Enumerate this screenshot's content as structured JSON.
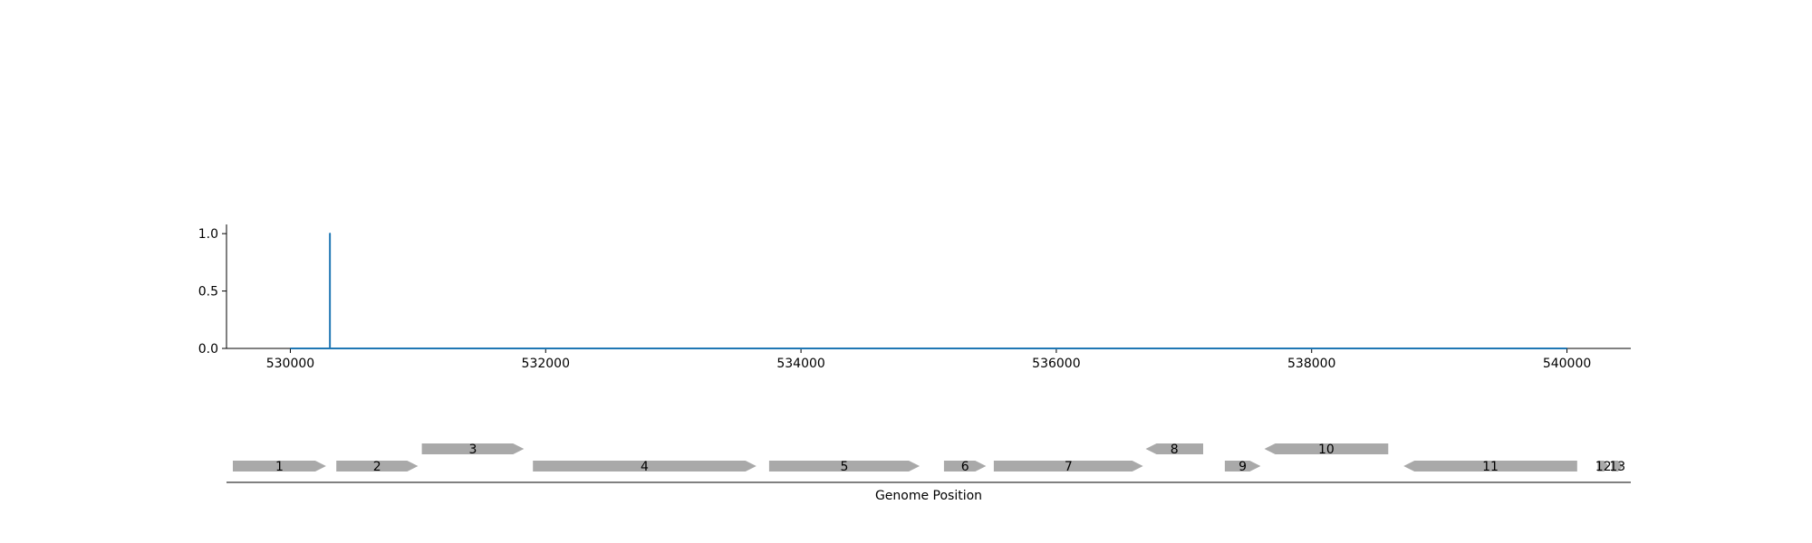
{
  "chart_data": {
    "type": "line",
    "title": "",
    "xlabel": "Genome Position",
    "ylabel": "",
    "xlim": [
      529500,
      540500
    ],
    "ylim": [
      0,
      1.08
    ],
    "x_ticks": [
      530000,
      532000,
      534000,
      536000,
      538000,
      540000
    ],
    "y_ticks": [
      0.0,
      0.5,
      1.0
    ],
    "y_tick_labels": [
      "0.0",
      "0.5",
      "1.0"
    ],
    "grid": false,
    "series": [
      {
        "color": "#1f77b4",
        "x": [
          530000,
          530310,
          530310,
          530310,
          530310,
          540000
        ],
        "y": [
          0,
          0,
          1.0,
          1.0,
          0,
          0
        ]
      }
    ],
    "genes": {
      "color": "#a9a9a9",
      "items": [
        {
          "label": "1",
          "start": 529550,
          "end": 530280,
          "strand": 1,
          "row": 0
        },
        {
          "label": "2",
          "start": 530360,
          "end": 531000,
          "strand": 1,
          "row": 0
        },
        {
          "label": "3",
          "start": 531030,
          "end": 531830,
          "strand": 1,
          "row": 1
        },
        {
          "label": "4",
          "start": 531900,
          "end": 533650,
          "strand": 1,
          "row": 0
        },
        {
          "label": "5",
          "start": 533750,
          "end": 534930,
          "strand": 1,
          "row": 0
        },
        {
          "label": "6",
          "start": 535120,
          "end": 535450,
          "strand": 1,
          "row": 0
        },
        {
          "label": "7",
          "start": 535510,
          "end": 536680,
          "strand": 1,
          "row": 0
        },
        {
          "label": "8",
          "start": 536700,
          "end": 537150,
          "strand": -1,
          "row": 1
        },
        {
          "label": "9",
          "start": 537320,
          "end": 537600,
          "strand": 1,
          "row": 0
        },
        {
          "label": "10",
          "start": 537630,
          "end": 538600,
          "strand": -1,
          "row": 1
        },
        {
          "label": "11",
          "start": 538720,
          "end": 540080,
          "strand": -1,
          "row": 0
        },
        {
          "label": "12",
          "start": 540240,
          "end": 540330,
          "strand": 1,
          "row": 0
        },
        {
          "label": "13",
          "start": 540350,
          "end": 540440,
          "strand": 1,
          "row": 0
        }
      ]
    }
  }
}
